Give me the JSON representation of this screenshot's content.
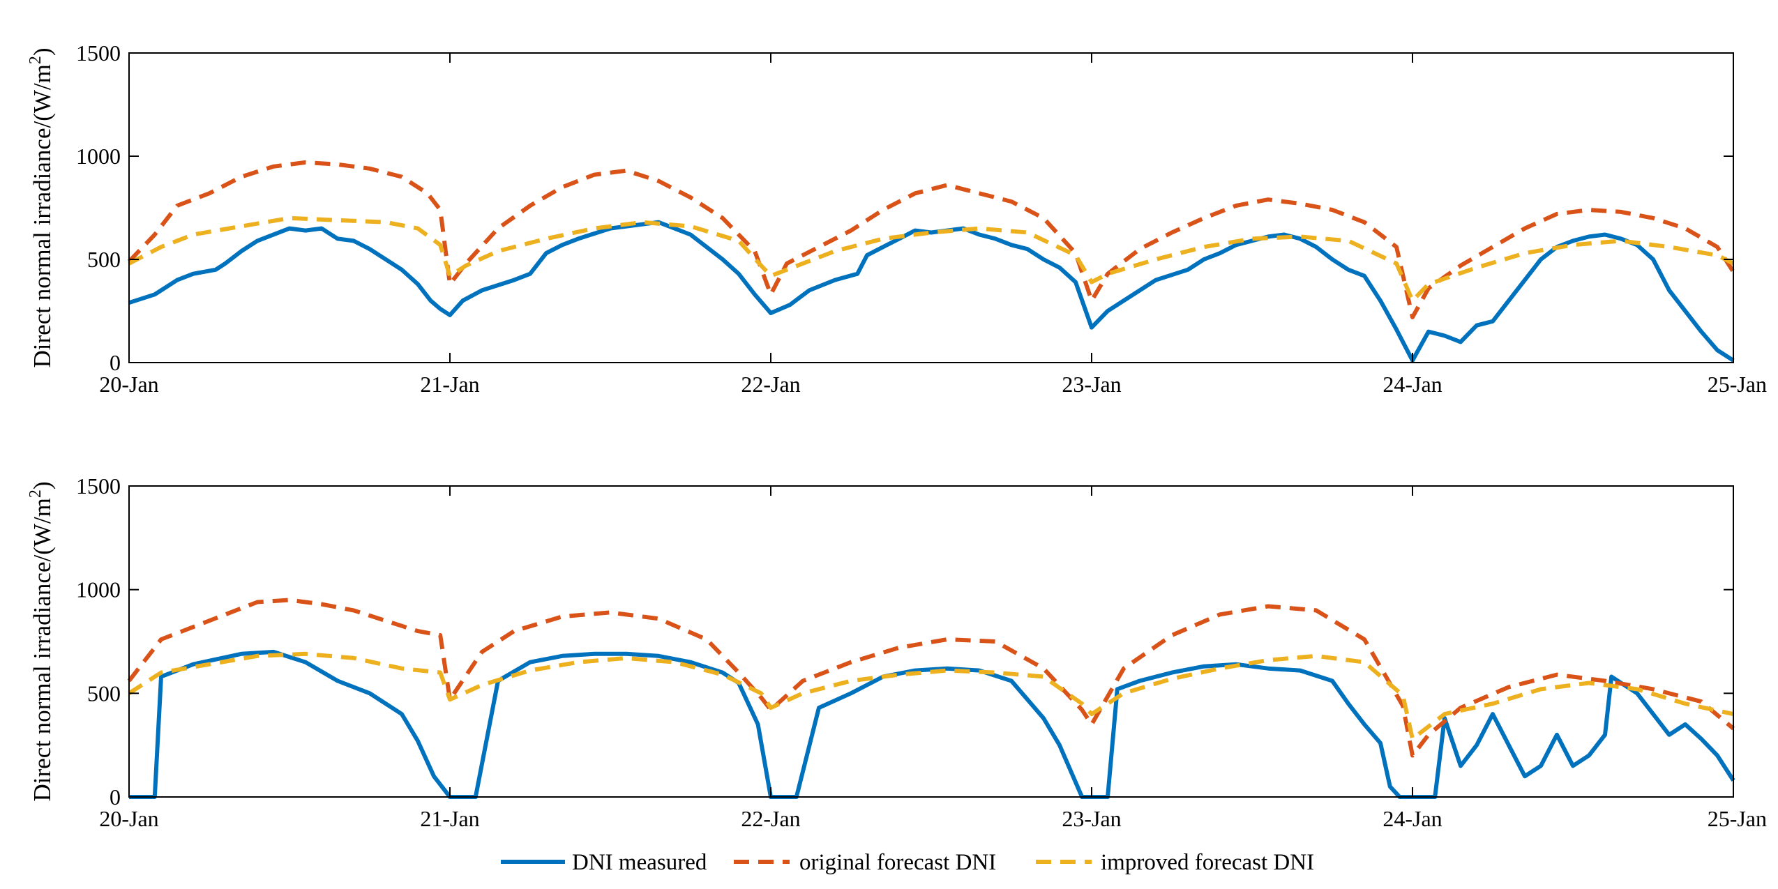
{
  "chart_data": [
    {
      "type": "line",
      "panel": "top",
      "ylabel_main": "Direct normal irradiance/(W/m",
      "ylabel_sup": "2",
      "ylabel_close": ")",
      "xlabel": "",
      "ylim": [
        0,
        1500
      ],
      "yticks": [
        0,
        500,
        1000,
        1500
      ],
      "xlim": [
        0,
        5
      ],
      "xticks": [
        0,
        1,
        2,
        3,
        4,
        5
      ],
      "xtick_labels": [
        "20-Jan",
        "21-Jan",
        "22-Jan",
        "23-Jan",
        "24-Jan",
        "25-Jan"
      ],
      "series": [
        {
          "name": "DNI measured",
          "color": "#0072BD",
          "style": "solid",
          "x": [
            0,
            0.08,
            0.15,
            0.2,
            0.27,
            0.3,
            0.35,
            0.4,
            0.5,
            0.55,
            0.6,
            0.65,
            0.7,
            0.75,
            0.8,
            0.85,
            0.9,
            0.94,
            0.97,
            1.0,
            1.04,
            1.1,
            1.2,
            1.25,
            1.3,
            1.35,
            1.4,
            1.5,
            1.55,
            1.6,
            1.65,
            1.7,
            1.75,
            1.8,
            1.85,
            1.9,
            1.95,
            2.0,
            2.06,
            2.12,
            2.2,
            2.27,
            2.3,
            2.35,
            2.4,
            2.45,
            2.5,
            2.55,
            2.6,
            2.65,
            2.7,
            2.75,
            2.8,
            2.85,
            2.9,
            2.95,
            3.0,
            3.05,
            3.1,
            3.2,
            3.3,
            3.35,
            3.4,
            3.45,
            3.5,
            3.55,
            3.6,
            3.65,
            3.7,
            3.75,
            3.8,
            3.85,
            3.9,
            3.95,
            4.0,
            4.05,
            4.1,
            4.15,
            4.2,
            4.25,
            4.3,
            4.35,
            4.4,
            4.45,
            4.5,
            4.55,
            4.6,
            4.65,
            4.7,
            4.75,
            4.8,
            4.85,
            4.9,
            4.95,
            5.0
          ],
          "y": [
            290,
            330,
            400,
            430,
            450,
            480,
            540,
            590,
            650,
            640,
            650,
            600,
            590,
            550,
            500,
            450,
            380,
            300,
            260,
            230,
            300,
            350,
            400,
            430,
            530,
            570,
            600,
            650,
            660,
            670,
            680,
            650,
            620,
            560,
            500,
            430,
            330,
            240,
            280,
            350,
            400,
            430,
            520,
            560,
            600,
            640,
            630,
            640,
            650,
            620,
            600,
            570,
            550,
            500,
            460,
            390,
            170,
            250,
            300,
            400,
            450,
            500,
            530,
            570,
            590,
            610,
            620,
            600,
            560,
            500,
            450,
            420,
            300,
            160,
            10,
            150,
            130,
            100,
            180,
            200,
            300,
            400,
            500,
            560,
            590,
            610,
            620,
            600,
            570,
            500,
            350,
            250,
            150,
            60,
            10
          ]
        },
        {
          "name": "original forecast DNI",
          "color": "#D95319",
          "style": "dashed",
          "x": [
            0,
            0.08,
            0.15,
            0.25,
            0.35,
            0.45,
            0.55,
            0.65,
            0.75,
            0.85,
            0.93,
            0.97,
            1.0,
            1.05,
            1.15,
            1.25,
            1.35,
            1.45,
            1.55,
            1.65,
            1.75,
            1.85,
            1.95,
            2.0,
            2.05,
            2.15,
            2.25,
            2.35,
            2.45,
            2.55,
            2.65,
            2.75,
            2.85,
            2.95,
            3.0,
            3.05,
            3.15,
            3.25,
            3.35,
            3.45,
            3.55,
            3.65,
            3.75,
            3.85,
            3.95,
            4.0,
            4.05,
            4.15,
            4.25,
            4.35,
            4.45,
            4.55,
            4.65,
            4.75,
            4.85,
            4.95,
            5.0
          ],
          "y": [
            490,
            620,
            760,
            820,
            900,
            950,
            970,
            960,
            940,
            900,
            820,
            740,
            380,
            480,
            650,
            760,
            850,
            910,
            930,
            880,
            800,
            700,
            540,
            330,
            480,
            560,
            640,
            740,
            820,
            860,
            820,
            780,
            700,
            530,
            300,
            430,
            550,
            630,
            700,
            760,
            790,
            770,
            740,
            680,
            560,
            220,
            360,
            470,
            560,
            650,
            720,
            740,
            730,
            700,
            650,
            560,
            440
          ]
        },
        {
          "name": "improved forecast DNI",
          "color": "#EDB120",
          "style": "dashed",
          "x": [
            0,
            0.1,
            0.2,
            0.35,
            0.5,
            0.65,
            0.8,
            0.9,
            0.97,
            1.0,
            1.05,
            1.15,
            1.3,
            1.45,
            1.6,
            1.75,
            1.9,
            1.97,
            2.0,
            2.05,
            2.2,
            2.35,
            2.5,
            2.65,
            2.8,
            2.95,
            3.0,
            3.05,
            3.2,
            3.35,
            3.5,
            3.65,
            3.8,
            3.95,
            4.0,
            4.05,
            4.2,
            4.35,
            4.5,
            4.65,
            4.8,
            4.95,
            5.0
          ],
          "y": [
            480,
            560,
            620,
            660,
            700,
            690,
            680,
            650,
            570,
            420,
            470,
            540,
            600,
            650,
            680,
            660,
            590,
            470,
            420,
            450,
            540,
            600,
            630,
            650,
            630,
            520,
            390,
            430,
            500,
            560,
            600,
            610,
            590,
            480,
            300,
            380,
            460,
            530,
            570,
            590,
            560,
            520,
            480
          ]
        }
      ]
    },
    {
      "type": "line",
      "panel": "bottom",
      "ylabel_main": "Direct normal irradiance/(W/m",
      "ylabel_sup": "2",
      "ylabel_close": ")",
      "xlabel": "",
      "ylim": [
        0,
        1500
      ],
      "yticks": [
        0,
        500,
        1000,
        1500
      ],
      "xlim": [
        0,
        5
      ],
      "xticks": [
        0,
        1,
        2,
        3,
        4,
        5
      ],
      "xtick_labels": [
        "20-Jan",
        "21-Jan",
        "22-Jan",
        "23-Jan",
        "24-Jan",
        "25-Jan"
      ],
      "series": [
        {
          "name": "DNI measured",
          "color": "#0072BD",
          "style": "solid",
          "x": [
            0,
            0.08,
            0.1,
            0.2,
            0.35,
            0.45,
            0.55,
            0.65,
            0.75,
            0.85,
            0.9,
            0.95,
            1.0,
            1.04,
            1.08,
            1.15,
            1.25,
            1.35,
            1.45,
            1.55,
            1.65,
            1.75,
            1.85,
            1.9,
            1.96,
            2.0,
            2.05,
            2.08,
            2.15,
            2.25,
            2.35,
            2.45,
            2.55,
            2.65,
            2.75,
            2.85,
            2.9,
            2.97,
            3.0,
            3.05,
            3.08,
            3.15,
            3.25,
            3.35,
            3.45,
            3.55,
            3.65,
            3.75,
            3.8,
            3.85,
            3.9,
            3.93,
            3.96,
            4.0,
            4.07,
            4.1,
            4.15,
            4.2,
            4.25,
            4.3,
            4.35,
            4.4,
            4.45,
            4.5,
            4.55,
            4.6,
            4.62,
            4.65,
            4.7,
            4.75,
            4.8,
            4.85,
            4.9,
            4.95,
            5.0
          ],
          "y": [
            0,
            0,
            580,
            640,
            690,
            700,
            650,
            560,
            500,
            400,
            270,
            100,
            0,
            0,
            0,
            560,
            650,
            680,
            690,
            690,
            680,
            650,
            600,
            550,
            350,
            0,
            0,
            0,
            430,
            500,
            580,
            610,
            620,
            610,
            560,
            380,
            250,
            0,
            0,
            0,
            520,
            560,
            600,
            630,
            640,
            620,
            610,
            560,
            450,
            350,
            260,
            50,
            0,
            0,
            0,
            380,
            150,
            250,
            400,
            250,
            100,
            150,
            300,
            150,
            200,
            300,
            580,
            550,
            500,
            400,
            300,
            350,
            280,
            200,
            80
          ]
        },
        {
          "name": "original forecast DNI",
          "color": "#D95319",
          "style": "dashed",
          "x": [
            0,
            0.1,
            0.2,
            0.3,
            0.4,
            0.5,
            0.6,
            0.7,
            0.8,
            0.9,
            0.97,
            1.0,
            1.1,
            1.2,
            1.35,
            1.5,
            1.65,
            1.8,
            1.9,
            1.97,
            2.0,
            2.1,
            2.25,
            2.4,
            2.55,
            2.7,
            2.85,
            2.97,
            3.0,
            3.1,
            3.25,
            3.4,
            3.55,
            3.7,
            3.85,
            3.97,
            4.0,
            4.05,
            4.15,
            4.3,
            4.45,
            4.6,
            4.75,
            4.9,
            5.0
          ],
          "y": [
            560,
            760,
            820,
            880,
            940,
            950,
            930,
            900,
            850,
            800,
            780,
            470,
            700,
            800,
            870,
            890,
            860,
            760,
            600,
            480,
            420,
            560,
            650,
            720,
            760,
            750,
            620,
            420,
            350,
            620,
            780,
            880,
            920,
            900,
            760,
            440,
            200,
            300,
            430,
            530,
            590,
            560,
            520,
            460,
            330
          ]
        },
        {
          "name": "improved forecast DNI",
          "color": "#EDB120",
          "style": "dashed",
          "x": [
            0,
            0.1,
            0.25,
            0.4,
            0.55,
            0.7,
            0.85,
            0.97,
            1.0,
            1.1,
            1.25,
            1.4,
            1.55,
            1.7,
            1.85,
            1.97,
            2.0,
            2.1,
            2.25,
            2.4,
            2.55,
            2.7,
            2.85,
            2.97,
            3.0,
            3.1,
            3.25,
            3.4,
            3.55,
            3.7,
            3.85,
            3.97,
            4.0,
            4.1,
            4.25,
            4.4,
            4.55,
            4.7,
            4.85,
            5.0
          ],
          "y": [
            500,
            600,
            640,
            680,
            690,
            670,
            620,
            600,
            470,
            540,
            610,
            650,
            670,
            650,
            590,
            500,
            430,
            500,
            560,
            590,
            610,
            600,
            580,
            450,
            400,
            500,
            570,
            620,
            660,
            680,
            650,
            490,
            280,
            400,
            450,
            520,
            550,
            520,
            450,
            400
          ]
        }
      ]
    }
  ],
  "legend": {
    "items": [
      {
        "label": "DNI measured",
        "color": "#0072BD",
        "style": "solid"
      },
      {
        "label": "original forecast DNI",
        "color": "#D95319",
        "style": "dashed"
      },
      {
        "label": "improved forecast DNI",
        "color": "#EDB120",
        "style": "dashed"
      }
    ]
  }
}
